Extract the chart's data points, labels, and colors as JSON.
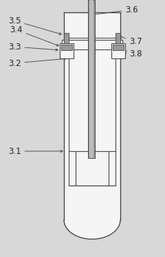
{
  "bg_color": "#d8d8d8",
  "line_color": "#444444",
  "gray_fill": "#999999",
  "white_fill": "#f5f5f5",
  "label_color": "#222222",
  "fig_width": 2.4,
  "fig_height": 3.74,
  "dpi": 100
}
